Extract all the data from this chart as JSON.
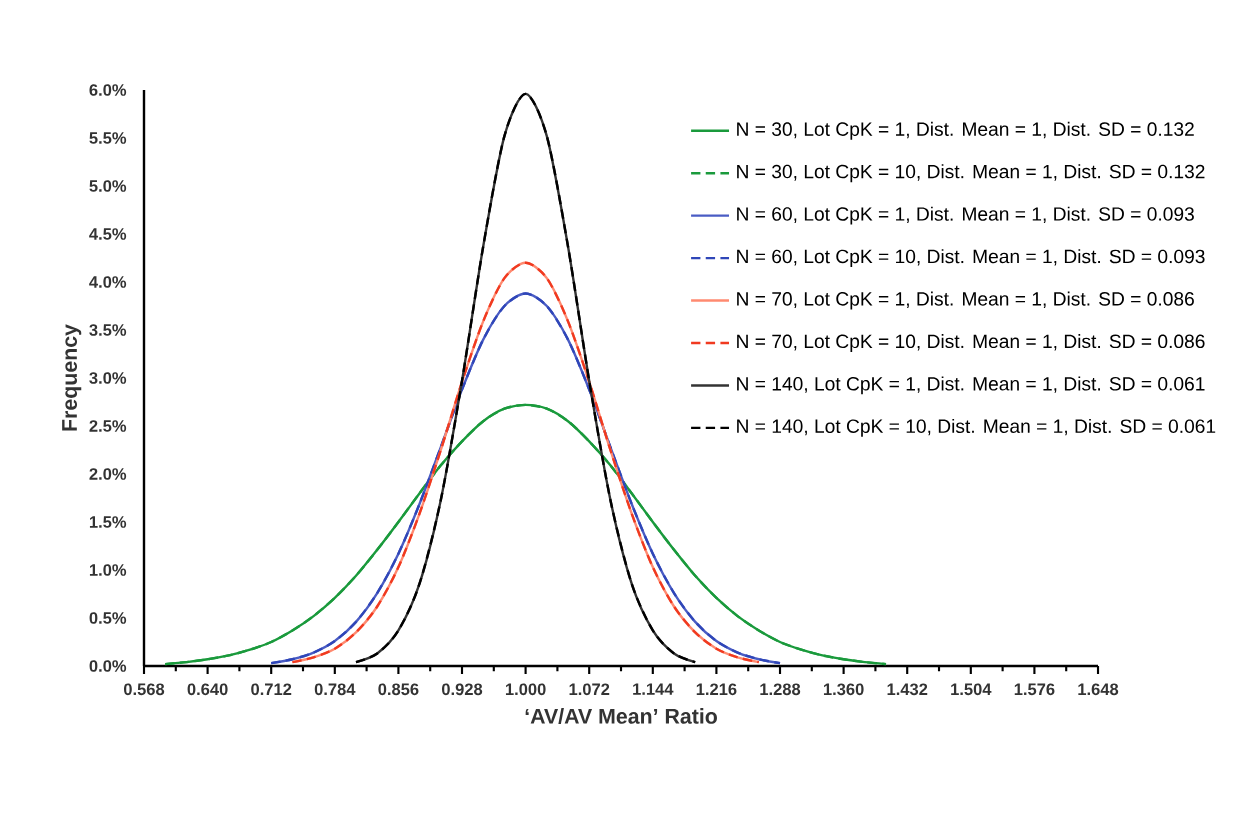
{
  "chart_data": {
    "type": "line",
    "xlabel": "‘AV/AV Mean’ Ratio",
    "ylabel": "Frequency",
    "xlim": [
      0.568,
      1.648
    ],
    "ylim": [
      0,
      6
    ],
    "xticks": [
      0.568,
      {
        "value": 0.64,
        "label": "0.640"
      },
      0.712,
      0.784,
      0.856,
      0.928,
      {
        "value": 1.0,
        "label": "1.000"
      },
      1.072,
      1.144,
      1.216,
      1.288,
      {
        "value": 1.36,
        "label": "1.360"
      },
      1.432,
      1.504,
      1.576,
      1.648
    ],
    "yticks": [
      {
        "value": 0,
        "label": "0.0%"
      },
      {
        "value": 0.5,
        "label": "0.5%"
      },
      {
        "value": 1,
        "label": "1.0%"
      },
      {
        "value": 1.5,
        "label": "1.5%"
      },
      {
        "value": 2,
        "label": "2.0%"
      },
      {
        "value": 2.5,
        "label": "2.5%"
      },
      {
        "value": 3,
        "label": "3.0%"
      },
      {
        "value": 3.5,
        "label": "3.5%"
      },
      {
        "value": 4,
        "label": "4.0%"
      },
      {
        "value": 4.5,
        "label": "4.5%"
      },
      {
        "value": 5,
        "label": "5.0%"
      },
      {
        "value": 5.5,
        "label": "5.5%"
      },
      {
        "value": 6,
        "label": "6.0%"
      }
    ],
    "x": [
      0.592,
      0.616,
      0.64,
      0.664,
      0.688,
      0.712,
      0.736,
      0.76,
      0.784,
      0.808,
      0.832,
      0.856,
      0.88,
      0.904,
      0.928,
      0.952,
      0.976,
      1.0,
      1.024,
      1.048,
      1.072,
      1.096,
      1.12,
      1.144,
      1.168,
      1.192,
      1.216,
      1.24,
      1.264,
      1.288,
      1.312,
      1.336,
      1.36,
      1.384,
      1.408
    ],
    "legend": "top right",
    "grid": false,
    "marker": "none",
    "series": [
      {
        "name": "N = 30, Lot CpK = 1, Dist. Mean = 1, Dist. SD = 0.132",
        "color": "#1a9a3c",
        "line_style": "solid",
        "values": [
          0.02,
          0.04,
          0.07,
          0.11,
          0.17,
          0.25,
          0.37,
          0.52,
          0.71,
          0.94,
          1.21,
          1.5,
          1.8,
          2.09,
          2.34,
          2.55,
          2.68,
          2.72,
          2.68,
          2.55,
          2.34,
          2.09,
          1.8,
          1.5,
          1.21,
          0.94,
          0.71,
          0.52,
          0.37,
          0.25,
          0.17,
          0.11,
          0.07,
          0.04,
          0.02
        ]
      },
      {
        "name": "N = 30, Lot CpK = 10, Dist. Mean = 1, Dist. SD = 0.132",
        "color": "#1a9a3c",
        "line_style": "dashed",
        "values": [
          0.02,
          0.04,
          0.07,
          0.11,
          0.17,
          0.25,
          0.37,
          0.52,
          0.71,
          0.94,
          1.21,
          1.5,
          1.8,
          2.09,
          2.34,
          2.55,
          2.68,
          2.72,
          2.68,
          2.55,
          2.34,
          2.09,
          1.8,
          1.5,
          1.21,
          0.94,
          0.71,
          0.52,
          0.37,
          0.25,
          0.17,
          0.11,
          0.07,
          0.04,
          0.02
        ]
      },
      {
        "name": "N = 60, Lot CpK = 1, Dist. Mean = 1, Dist. SD = 0.093",
        "color": "#4a5cc4",
        "line_style": "solid",
        "values": [
          null,
          null,
          null,
          null,
          null,
          0.03,
          0.07,
          0.14,
          0.26,
          0.46,
          0.76,
          1.17,
          1.69,
          2.28,
          2.88,
          3.4,
          3.75,
          3.88,
          3.75,
          3.4,
          2.88,
          2.28,
          1.69,
          1.17,
          0.76,
          0.46,
          0.26,
          0.14,
          0.07,
          0.03,
          null,
          null,
          null,
          null,
          null
        ]
      },
      {
        "name": "N = 60, Lot CpK = 10, Dist. Mean = 1, Dist. SD = 0.093",
        "color": "#2f46b8",
        "line_style": "dashed",
        "values": [
          null,
          null,
          null,
          null,
          null,
          0.03,
          0.07,
          0.14,
          0.26,
          0.46,
          0.76,
          1.17,
          1.69,
          2.28,
          2.88,
          3.4,
          3.75,
          3.88,
          3.75,
          3.4,
          2.88,
          2.28,
          1.69,
          1.17,
          0.76,
          0.46,
          0.26,
          0.14,
          0.07,
          0.03,
          null,
          null,
          null,
          null,
          null
        ]
      },
      {
        "name": "N = 70, Lot CpK = 1, Dist. Mean = 1, Dist. SD = 0.086",
        "color": "#ff8a70",
        "line_style": "solid",
        "values": [
          null,
          null,
          null,
          null,
          null,
          null,
          0.04,
          0.09,
          0.18,
          0.35,
          0.62,
          1.03,
          1.59,
          2.25,
          2.96,
          3.59,
          4.04,
          4.2,
          4.04,
          3.59,
          2.96,
          2.25,
          1.59,
          1.03,
          0.62,
          0.35,
          0.18,
          0.09,
          0.04,
          null,
          null,
          null,
          null,
          null,
          null
        ]
      },
      {
        "name": "N = 70, Lot CpK = 10, Dist. Mean = 1, Dist. SD = 0.086",
        "color": "#f03a20",
        "line_style": "dashed",
        "values": [
          null,
          null,
          null,
          null,
          null,
          null,
          0.04,
          0.09,
          0.18,
          0.35,
          0.62,
          1.03,
          1.59,
          2.25,
          2.96,
          3.59,
          4.04,
          4.2,
          4.04,
          3.59,
          2.96,
          2.25,
          1.59,
          1.03,
          0.62,
          0.35,
          0.18,
          0.09,
          0.04,
          null,
          null,
          null,
          null,
          null,
          null
        ]
      },
      {
        "name": "N = 140, Lot CpK = 1, Dist. Mean = 1, Dist. SD = 0.061",
        "color": "#333333",
        "line_style": "solid",
        "values": [
          null,
          null,
          null,
          null,
          null,
          null,
          null,
          null,
          null,
          0.04,
          0.13,
          0.37,
          0.86,
          1.73,
          2.97,
          4.37,
          5.52,
          5.96,
          5.52,
          4.37,
          2.97,
          1.73,
          0.86,
          0.37,
          0.13,
          0.04,
          null,
          null,
          null,
          null,
          null,
          null,
          null,
          null,
          null
        ]
      },
      {
        "name": "N = 140, Lot CpK = 10, Dist. Mean = 1, Dist. SD = 0.061",
        "color": "#000000",
        "line_style": "dashed",
        "values": [
          null,
          null,
          null,
          null,
          null,
          null,
          null,
          null,
          null,
          0.04,
          0.13,
          0.37,
          0.86,
          1.73,
          2.97,
          4.37,
          5.52,
          5.96,
          5.52,
          4.37,
          2.97,
          1.73,
          0.86,
          0.37,
          0.13,
          0.04,
          null,
          null,
          null,
          null,
          null,
          null,
          null,
          null,
          null
        ]
      }
    ]
  }
}
